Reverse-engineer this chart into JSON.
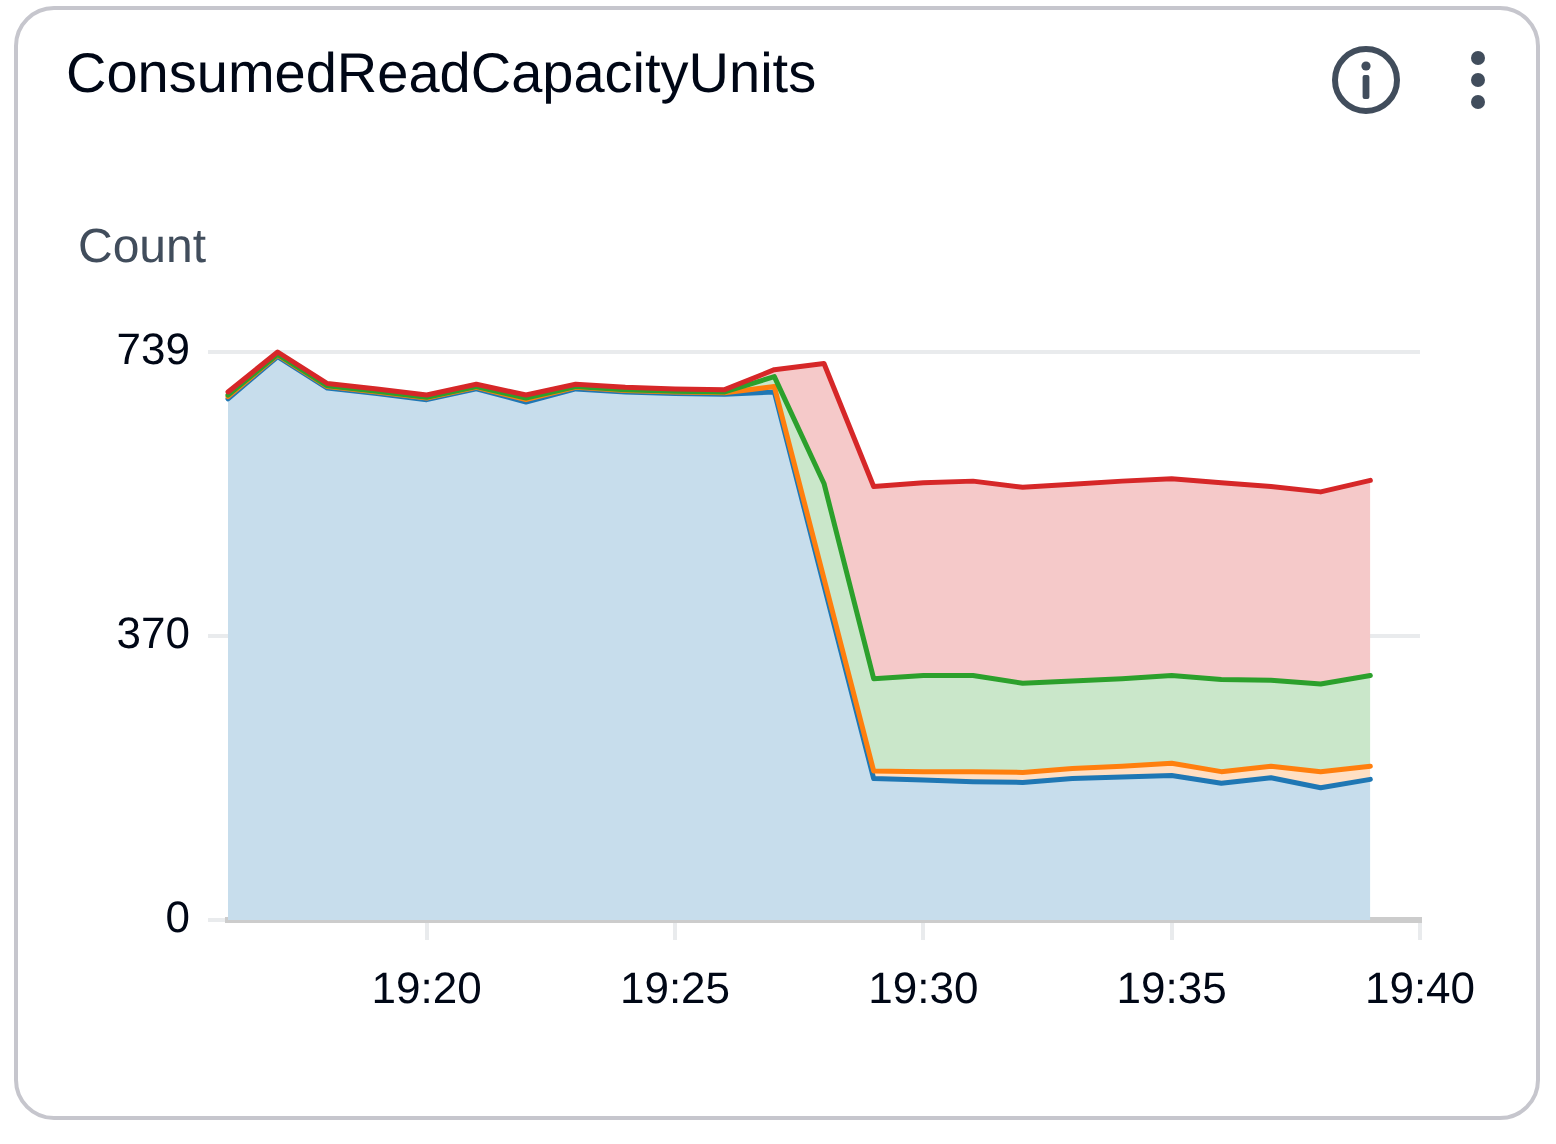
{
  "chart_data": {
    "type": "area",
    "stacked": true,
    "title": "ConsumedReadCapacityUnits",
    "ylabel": "Count",
    "x": [
      19.266667,
      19.283333,
      19.3,
      19.316667,
      19.333333,
      19.35,
      19.366667,
      19.383333,
      19.4,
      19.416667,
      19.433333,
      19.45,
      19.466667,
      19.483333,
      19.5,
      19.516667,
      19.533333,
      19.55,
      19.566667,
      19.583333,
      19.6,
      19.616667,
      19.633333,
      19.65
    ],
    "xlim": [
      19.266667,
      19.666667
    ],
    "xticks": [
      {
        "value": 19.333333,
        "label": "19:20"
      },
      {
        "value": 19.416667,
        "label": "19:25"
      },
      {
        "value": 19.5,
        "label": "19:30"
      },
      {
        "value": 19.583333,
        "label": "19:35"
      },
      {
        "value": 19.666667,
        "label": "19:40"
      }
    ],
    "ylim": [
      0,
      739
    ],
    "yticks": [
      0,
      370,
      739
    ],
    "grid": "y",
    "series": [
      {
        "color": "#1f77b4",
        "values": [
          678,
          733,
          692,
          685,
          677,
          691,
          674,
          691,
          687,
          685,
          684,
          687,
          435,
          184,
          182,
          180,
          179,
          184,
          186,
          188,
          178,
          185,
          172,
          183
        ]
      },
      {
        "color": "#ff7f0e",
        "values": [
          3,
          2,
          2,
          2,
          2,
          2,
          3,
          2,
          2,
          2,
          2,
          7,
          9,
          10,
          11,
          13,
          13,
          13,
          14,
          16,
          15,
          15,
          21,
          17
        ]
      },
      {
        "color": "#2ca02c",
        "values": [
          2,
          1,
          1,
          1,
          1,
          1,
          2,
          1,
          1,
          1,
          1,
          13,
          124,
          120,
          125,
          125,
          116,
          114,
          114,
          114,
          120,
          112,
          114,
          118
        ]
      },
      {
        "color": "#d62728",
        "values": [
          4,
          3,
          3,
          3,
          3,
          3,
          4,
          3,
          3,
          3,
          3,
          9,
          156,
          250,
          251,
          253,
          255,
          256,
          257,
          256,
          256,
          252,
          250,
          254
        ]
      }
    ]
  }
}
